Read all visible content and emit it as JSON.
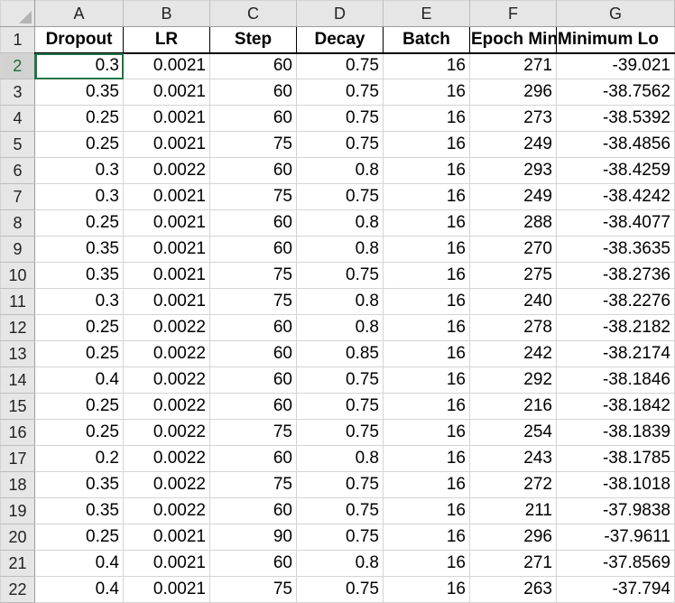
{
  "columns": [
    "A",
    "B",
    "C",
    "D",
    "E",
    "F",
    "G"
  ],
  "headers": [
    "Dropout",
    "LR",
    "Step",
    "Decay",
    "Batch",
    "Epoch Min",
    "Minimum Lo"
  ],
  "header_row_number": "1",
  "rows": [
    {
      "n": "2",
      "cells": [
        "0.3",
        "0.0021",
        "60",
        "0.75",
        "16",
        "271",
        "-39.021"
      ]
    },
    {
      "n": "3",
      "cells": [
        "0.35",
        "0.0021",
        "60",
        "0.75",
        "16",
        "296",
        "-38.7562"
      ]
    },
    {
      "n": "4",
      "cells": [
        "0.25",
        "0.0021",
        "60",
        "0.75",
        "16",
        "273",
        "-38.5392"
      ]
    },
    {
      "n": "5",
      "cells": [
        "0.25",
        "0.0021",
        "75",
        "0.75",
        "16",
        "249",
        "-38.4856"
      ]
    },
    {
      "n": "6",
      "cells": [
        "0.3",
        "0.0022",
        "60",
        "0.8",
        "16",
        "293",
        "-38.4259"
      ]
    },
    {
      "n": "7",
      "cells": [
        "0.3",
        "0.0021",
        "75",
        "0.75",
        "16",
        "249",
        "-38.4242"
      ]
    },
    {
      "n": "8",
      "cells": [
        "0.25",
        "0.0021",
        "60",
        "0.8",
        "16",
        "288",
        "-38.4077"
      ]
    },
    {
      "n": "9",
      "cells": [
        "0.35",
        "0.0021",
        "60",
        "0.8",
        "16",
        "270",
        "-38.3635"
      ]
    },
    {
      "n": "10",
      "cells": [
        "0.35",
        "0.0021",
        "75",
        "0.75",
        "16",
        "275",
        "-38.2736"
      ]
    },
    {
      "n": "11",
      "cells": [
        "0.3",
        "0.0021",
        "75",
        "0.8",
        "16",
        "240",
        "-38.2276"
      ]
    },
    {
      "n": "12",
      "cells": [
        "0.25",
        "0.0022",
        "60",
        "0.8",
        "16",
        "278",
        "-38.2182"
      ]
    },
    {
      "n": "13",
      "cells": [
        "0.25",
        "0.0022",
        "60",
        "0.85",
        "16",
        "242",
        "-38.2174"
      ]
    },
    {
      "n": "14",
      "cells": [
        "0.4",
        "0.0022",
        "60",
        "0.75",
        "16",
        "292",
        "-38.1846"
      ]
    },
    {
      "n": "15",
      "cells": [
        "0.25",
        "0.0022",
        "60",
        "0.75",
        "16",
        "216",
        "-38.1842"
      ]
    },
    {
      "n": "16",
      "cells": [
        "0.25",
        "0.0022",
        "75",
        "0.75",
        "16",
        "254",
        "-38.1839"
      ]
    },
    {
      "n": "17",
      "cells": [
        "0.2",
        "0.0022",
        "60",
        "0.8",
        "16",
        "243",
        "-38.1785"
      ]
    },
    {
      "n": "18",
      "cells": [
        "0.35",
        "0.0022",
        "75",
        "0.75",
        "16",
        "272",
        "-38.1018"
      ]
    },
    {
      "n": "19",
      "cells": [
        "0.35",
        "0.0022",
        "60",
        "0.75",
        "16",
        "211",
        "-37.9838"
      ]
    },
    {
      "n": "20",
      "cells": [
        "0.25",
        "0.0021",
        "90",
        "0.75",
        "16",
        "296",
        "-37.9611"
      ]
    },
    {
      "n": "21",
      "cells": [
        "0.4",
        "0.0021",
        "60",
        "0.8",
        "16",
        "271",
        "-37.8569"
      ]
    },
    {
      "n": "22",
      "cells": [
        "0.4",
        "0.0021",
        "75",
        "0.75",
        "16",
        "263",
        "-37.794"
      ]
    }
  ],
  "selection": {
    "cell": "A2"
  },
  "colors": {
    "header_bg": "#e6e6e6",
    "gridline": "#d4d4d4",
    "selection_accent": "#217346"
  }
}
